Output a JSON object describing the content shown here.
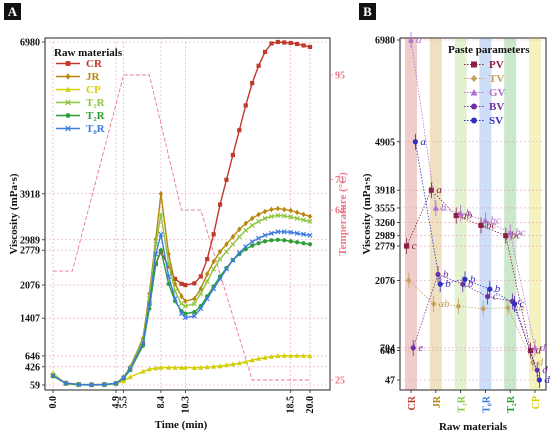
{
  "panels": {
    "a": "A",
    "b": "B"
  },
  "chart_data": [
    {
      "type": "line",
      "panel": "A",
      "xlabel": "Time (min)",
      "ylabel": "Viscosity (mPa·s)",
      "y2label": "Temperature (°C)",
      "legend_title": "Raw materials",
      "legend_position": "top-left",
      "xlim": [
        0,
        20
      ],
      "ylim": [
        59,
        6980
      ],
      "y2lim": [
        25,
        95
      ],
      "x_ticks": [
        "0.0",
        "4.9",
        "5.5",
        "8.4",
        "10.3",
        "18.5",
        "20.0"
      ],
      "y_ticks": [
        "59",
        "426",
        "646",
        "1407",
        "2076",
        "2779",
        "2989",
        "3918",
        "6980"
      ],
      "y2_ticks": [
        "25",
        "64",
        "71",
        "95"
      ],
      "y_tick_values": [
        59,
        426,
        646,
        1407,
        2076,
        2779,
        2989,
        3918,
        6980
      ],
      "y2_tick_values": [
        25,
        64,
        71,
        95
      ],
      "series": [
        {
          "name": "CR",
          "color": "#c0392b",
          "marker": "square",
          "x": [
            0,
            1,
            2,
            3,
            4,
            4.9,
            5.5,
            6,
            7,
            7.5,
            8,
            8.4,
            9,
            9.5,
            10,
            10.3,
            11,
            11.5,
            12,
            12.5,
            13,
            13.5,
            14,
            14.5,
            15,
            15.5,
            16,
            16.5,
            17,
            17.5,
            18,
            18.5,
            19,
            19.5,
            20
          ],
          "y": [
            250,
            100,
            70,
            65,
            70,
            90,
            200,
            380,
            900,
            1700,
            2500,
            2750,
            2450,
            2200,
            2100,
            2076,
            2110,
            2250,
            2600,
            3100,
            3700,
            4200,
            4700,
            5200,
            5700,
            6150,
            6500,
            6780,
            6950,
            6980,
            6970,
            6960,
            6940,
            6910,
            6880
          ]
        },
        {
          "name": "JR",
          "color": "#b8860b",
          "marker": "diamond",
          "x": [
            0,
            1,
            2,
            3,
            4,
            4.9,
            5.5,
            6,
            7,
            7.5,
            8,
            8.4,
            9,
            9.5,
            10,
            10.3,
            11,
            11.5,
            12,
            12.5,
            13,
            13.5,
            14,
            14.5,
            15,
            15.5,
            16,
            16.5,
            17,
            17.5,
            18,
            18.5,
            19,
            19.5,
            20
          ],
          "y": [
            240,
            95,
            70,
            65,
            70,
            95,
            220,
            420,
            1000,
            1900,
            3000,
            3918,
            2700,
            2100,
            1850,
            1750,
            1800,
            2000,
            2300,
            2550,
            2750,
            2900,
            3050,
            3200,
            3320,
            3420,
            3500,
            3560,
            3600,
            3620,
            3600,
            3580,
            3540,
            3500,
            3460
          ]
        },
        {
          "name": "CP",
          "color": "#d4d000",
          "marker": "triangle",
          "x": [
            0,
            1,
            2,
            3,
            4,
            4.9,
            5.5,
            6,
            7,
            7.5,
            8,
            8.4,
            9,
            9.5,
            10,
            10.3,
            11,
            11.5,
            12,
            12.5,
            13,
            13.5,
            14,
            14.5,
            15,
            15.5,
            16,
            16.5,
            17,
            17.5,
            18,
            18.5,
            19,
            19.5,
            20
          ],
          "y": [
            300,
            80,
            60,
            55,
            60,
            80,
            140,
            220,
            330,
            380,
            400,
            410,
            410,
            410,
            410,
            410,
            405,
            410,
            420,
            430,
            440,
            460,
            480,
            500,
            530,
            560,
            590,
            610,
            630,
            646,
            650,
            650,
            650,
            648,
            645
          ]
        },
        {
          "name": "T₁R",
          "color": "#8dc63f",
          "marker": "x",
          "x": [
            0,
            1,
            2,
            3,
            4,
            4.9,
            5.5,
            6,
            7,
            7.5,
            8,
            8.4,
            9,
            9.5,
            10,
            10.3,
            11,
            11.5,
            12,
            12.5,
            13,
            13.5,
            14,
            14.5,
            15,
            15.5,
            16,
            16.5,
            17,
            17.5,
            18,
            18.5,
            19,
            19.5,
            20
          ],
          "y": [
            260,
            95,
            70,
            65,
            70,
            95,
            210,
            400,
            950,
            1800,
            2900,
            3500,
            2500,
            1950,
            1700,
            1650,
            1700,
            1900,
            2150,
            2400,
            2600,
            2750,
            2900,
            3050,
            3180,
            3280,
            3360,
            3420,
            3460,
            3480,
            3470,
            3450,
            3420,
            3390,
            3360
          ]
        },
        {
          "name": "T₂R",
          "color": "#2e9e34",
          "marker": "circle",
          "x": [
            0,
            1,
            2,
            3,
            4,
            4.9,
            5.5,
            6,
            7,
            7.5,
            8,
            8.4,
            9,
            9.5,
            10,
            10.3,
            11,
            11.5,
            12,
            12.5,
            13,
            13.5,
            14,
            14.5,
            15,
            15.5,
            16,
            16.5,
            17,
            17.5,
            18,
            18.5,
            19,
            19.5,
            20
          ],
          "y": [
            240,
            90,
            65,
            60,
            65,
            90,
            190,
            360,
            850,
            1600,
            2500,
            2779,
            2100,
            1750,
            1550,
            1500,
            1530,
            1650,
            1850,
            2050,
            2250,
            2420,
            2580,
            2700,
            2800,
            2870,
            2920,
            2960,
            2980,
            2989,
            2980,
            2960,
            2940,
            2920,
            2900
          ]
        },
        {
          "name": "T₀R",
          "color": "#3c7be0",
          "marker": "x",
          "x": [
            0,
            1,
            2,
            3,
            4,
            4.9,
            5.5,
            6,
            7,
            7.5,
            8,
            8.4,
            9,
            9.5,
            10,
            10.3,
            11,
            11.5,
            12,
            12.5,
            13,
            13.5,
            14,
            14.5,
            15,
            15.5,
            16,
            16.5,
            17,
            17.5,
            18,
            18.5,
            19,
            19.5,
            20
          ],
          "y": [
            250,
            92,
            68,
            62,
            68,
            92,
            200,
            380,
            900,
            1700,
            2700,
            3100,
            2250,
            1800,
            1500,
            1420,
            1450,
            1600,
            1800,
            2000,
            2200,
            2400,
            2580,
            2730,
            2850,
            2950,
            3020,
            3080,
            3120,
            3150,
            3150,
            3140,
            3120,
            3100,
            3080
          ]
        }
      ],
      "temperature": {
        "name": "Temperature",
        "color": "#e87a8a",
        "x": [
          0,
          1.5,
          5.5,
          7.5,
          10.0,
          11.5,
          15.5,
          18.5,
          20.0
        ],
        "y": [
          50,
          50,
          95,
          95,
          64,
          64,
          25,
          25,
          25
        ]
      }
    },
    {
      "type": "scatter",
      "panel": "B",
      "xlabel": "Raw materials",
      "ylabel": "Viscosity (mPa·s)",
      "legend_title": "Paste parameters",
      "legend_position": "top-right",
      "categories": [
        "CR",
        "JR",
        "T₁R",
        "T₀R",
        "T₂R",
        "CP"
      ],
      "category_colors": [
        "#c0392b",
        "#b8860b",
        "#8dc63f",
        "#3c7be0",
        "#2e9e34",
        "#d4d000"
      ],
      "ylim": [
        47,
        6980
      ],
      "y_ticks": [
        "47",
        "646",
        "704",
        "2076",
        "2779",
        "2989",
        "3260",
        "3555",
        "3918",
        "4905",
        "6980"
      ],
      "y_tick_values": [
        47,
        646,
        704,
        2076,
        2779,
        2989,
        3260,
        3555,
        3918,
        4905,
        6980
      ],
      "series": [
        {
          "name": "PV",
          "color": "#8b2040",
          "marker": "square",
          "values": [
            2779,
            3918,
            3400,
            3200,
            2989,
            646
          ],
          "letters": [
            "c",
            "a",
            "ab",
            "bc",
            "bc",
            "d"
          ]
        },
        {
          "name": "TV",
          "color": "#c8a060",
          "marker": "diamond",
          "values": [
            2076,
            1600,
            1550,
            1500,
            1520,
            400
          ],
          "letters": [
            "",
            "ab",
            "",
            "",
            "ab",
            "d"
          ]
        },
        {
          "name": "GV",
          "color": "#b070d0",
          "marker": "triangle",
          "values": [
            6980,
            3555,
            3450,
            3300,
            3050,
            704
          ],
          "letters": [
            "a",
            "b",
            "b",
            "bc",
            "bc",
            "d"
          ]
        },
        {
          "name": "BV",
          "color": "#7030a0",
          "marker": "circle",
          "values": [
            704,
            2200,
            2000,
            1750,
            1650,
            250
          ],
          "letters": [
            "e",
            "b",
            "b",
            "c",
            "c",
            "d"
          ]
        },
        {
          "name": "SV",
          "color": "#3030c0",
          "marker": "circle",
          "values": [
            4905,
            2000,
            2100,
            1900,
            1600,
            47
          ],
          "letters": [
            "a",
            "b",
            "b",
            "b",
            "c",
            "d"
          ]
        }
      ]
    }
  ]
}
